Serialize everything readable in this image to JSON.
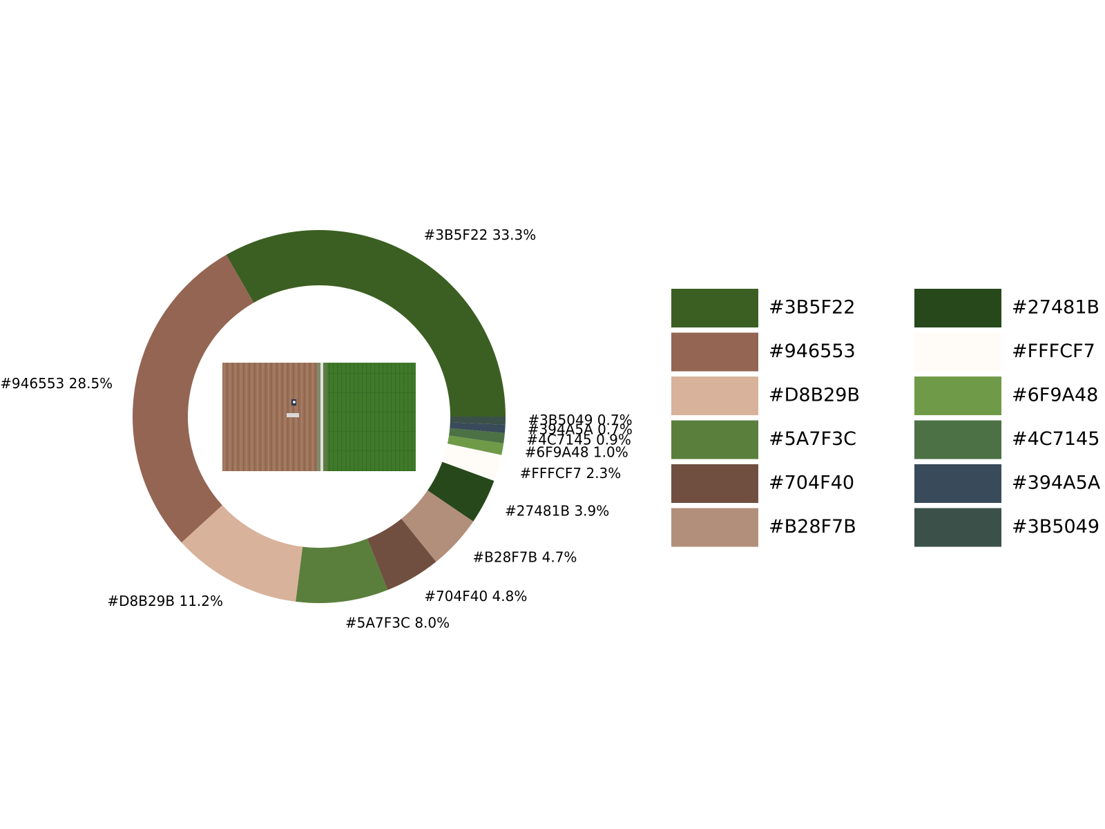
{
  "chart_data": {
    "type": "pie",
    "style": "donut",
    "title": "",
    "center_image": "aerial-farm-field-photo",
    "legend_placement": "right",
    "legend_columns": 2,
    "slices": [
      {
        "label": "#3B5F22",
        "value": 33.3,
        "percent_label": "33.3%",
        "color": "#3B5F22"
      },
      {
        "label": "#946553",
        "value": 28.5,
        "percent_label": "28.5%",
        "color": "#946553"
      },
      {
        "label": "#D8B29B",
        "value": 11.2,
        "percent_label": "11.2%",
        "color": "#D8B29B"
      },
      {
        "label": "#5A7F3C",
        "value": 8.0,
        "percent_label": "8.0%",
        "color": "#5A7F3C"
      },
      {
        "label": "#704F40",
        "value": 4.8,
        "percent_label": "4.8%",
        "color": "#704F40"
      },
      {
        "label": "#B28F7B",
        "value": 4.7,
        "percent_label": "4.7%",
        "color": "#B28F7B"
      },
      {
        "label": "#27481B",
        "value": 3.9,
        "percent_label": "3.9%",
        "color": "#27481B"
      },
      {
        "label": "#FFFCF7",
        "value": 2.3,
        "percent_label": "2.3%",
        "color": "#FFFCF7"
      },
      {
        "label": "#6F9A48",
        "value": 1.0,
        "percent_label": "1.0%",
        "color": "#6F9A48"
      },
      {
        "label": "#4C7145",
        "value": 0.9,
        "percent_label": "0.9%",
        "color": "#4C7145"
      },
      {
        "label": "#394A5A",
        "value": 0.7,
        "percent_label": "0.7%",
        "color": "#394A5A"
      },
      {
        "label": "#3B5049",
        "value": 0.7,
        "percent_label": "0.7%",
        "color": "#3B5049"
      }
    ]
  }
}
